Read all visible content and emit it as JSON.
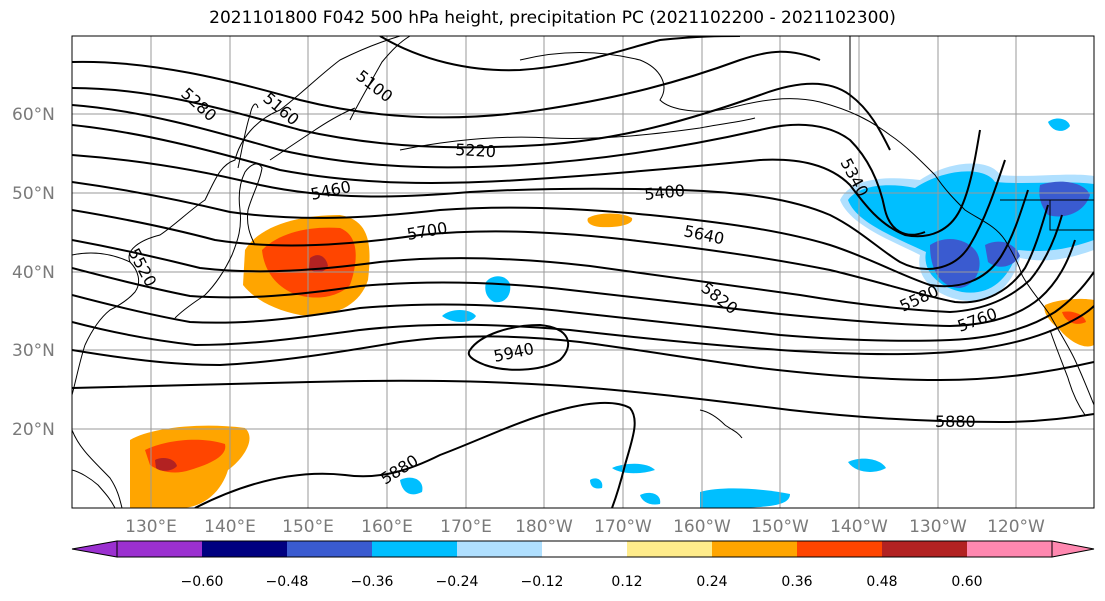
{
  "title": "2021101800 F042 500 hPa height, precipitation PC (2021102200 - 2021102300)",
  "latitude_labels": [
    "60°N",
    "50°N",
    "40°N",
    "30°N",
    "20°N"
  ],
  "longitude_labels": [
    "130°E",
    "140°E",
    "150°E",
    "160°E",
    "170°E",
    "180°W",
    "170°W",
    "160°W",
    "150°W",
    "140°W",
    "130°W",
    "120°W"
  ],
  "contour_labels": [
    "5100",
    "5160",
    "5280",
    "5220",
    "5460",
    "5400",
    "5340",
    "5700",
    "5640",
    "5520",
    "5820",
    "5580",
    "5760",
    "5940",
    "5880",
    "5880"
  ],
  "colorbar": {
    "tick_labels": [
      "−0.60",
      "−0.48",
      "−0.36",
      "−0.24",
      "−0.12",
      "0.12",
      "0.24",
      "0.36",
      "0.48",
      "0.60"
    ],
    "colors": [
      "#9b30d0",
      "#000080",
      "#3a5bd0",
      "#00bfff",
      "#b0e0ff",
      "#ffffff",
      "#ffec8b",
      "#ffa500",
      "#ff4500",
      "#b22222",
      "#ff88b0",
      "#ff88b0"
    ]
  },
  "colors": {
    "neg_light": "#b0e0ff",
    "neg_mid": "#00bfff",
    "neg_strong": "#3a5bd0",
    "neg_deep": "#000080",
    "pos_light": "#ffec8b",
    "pos_mid": "#ffa500",
    "pos_strong": "#ff4500",
    "pos_deep": "#b22222"
  }
}
